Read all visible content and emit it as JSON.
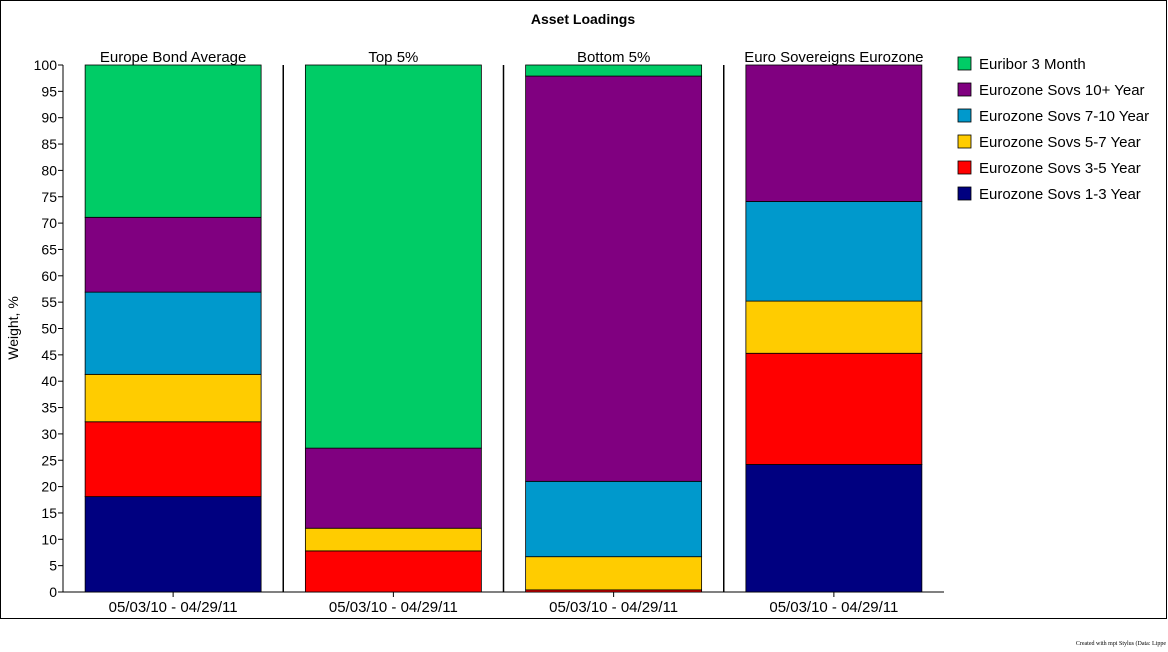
{
  "chart_data": {
    "type": "bar",
    "stacked": true,
    "title": "Asset Loadings",
    "ylabel": "Weight, %",
    "ylim": [
      0,
      100
    ],
    "yticks": [
      0,
      5,
      10,
      15,
      20,
      25,
      30,
      35,
      40,
      45,
      50,
      55,
      60,
      65,
      70,
      75,
      80,
      85,
      90,
      95,
      100
    ],
    "panels": [
      {
        "title": "Europe Bond Average",
        "category": "05/03/10 - 04/29/11",
        "values": {
          "sovs_1_3": 18.1,
          "sovs_3_5": 14.2,
          "sovs_5_7": 9.0,
          "sovs_7_10": 15.6,
          "sovs_10p": 14.2,
          "euribor": 28.9
        }
      },
      {
        "title": "Top 5%",
        "category": "05/03/10 - 04/29/11",
        "values": {
          "sovs_1_3": 0.0,
          "sovs_3_5": 7.8,
          "sovs_5_7": 4.3,
          "sovs_7_10": 0.0,
          "sovs_10p": 15.2,
          "euribor": 72.7
        }
      },
      {
        "title": "Bottom 5%",
        "category": "05/03/10 - 04/29/11",
        "values": {
          "sovs_1_3": 0.0,
          "sovs_3_5": 0.4,
          "sovs_5_7": 6.3,
          "sovs_7_10": 14.3,
          "sovs_10p": 76.9,
          "euribor": 2.1
        }
      },
      {
        "title": "Euro Sovereigns Eurozone",
        "category": "05/03/10 - 04/29/11",
        "values": {
          "sovs_1_3": 24.2,
          "sovs_3_5": 21.1,
          "sovs_5_7": 9.9,
          "sovs_7_10": 18.9,
          "sovs_10p": 25.9,
          "euribor": 0.0
        }
      }
    ],
    "series": [
      {
        "key": "sovs_1_3",
        "name": "Eurozone Sovs 1-3 Year",
        "color": "#000080"
      },
      {
        "key": "sovs_3_5",
        "name": "Eurozone Sovs 3-5 Year",
        "color": "#ff0000"
      },
      {
        "key": "sovs_5_7",
        "name": "Eurozone Sovs 5-7 Year",
        "color": "#ffcc00"
      },
      {
        "key": "sovs_7_10",
        "name": "Eurozone Sovs 7-10 Year",
        "color": "#0099cc"
      },
      {
        "key": "sovs_10p",
        "name": "Eurozone Sovs 10+ Year",
        "color": "#800080"
      },
      {
        "key": "euribor",
        "name": "Euribor 3 Month",
        "color": "#00cc66"
      }
    ],
    "legend_order": [
      "euribor",
      "sovs_10p",
      "sovs_7_10",
      "sovs_5_7",
      "sovs_3_5",
      "sovs_1_3"
    ],
    "legend_position": "right",
    "grid": false
  },
  "footer": {
    "credit": "Created with mpi Stylus (Data: Lippe"
  }
}
